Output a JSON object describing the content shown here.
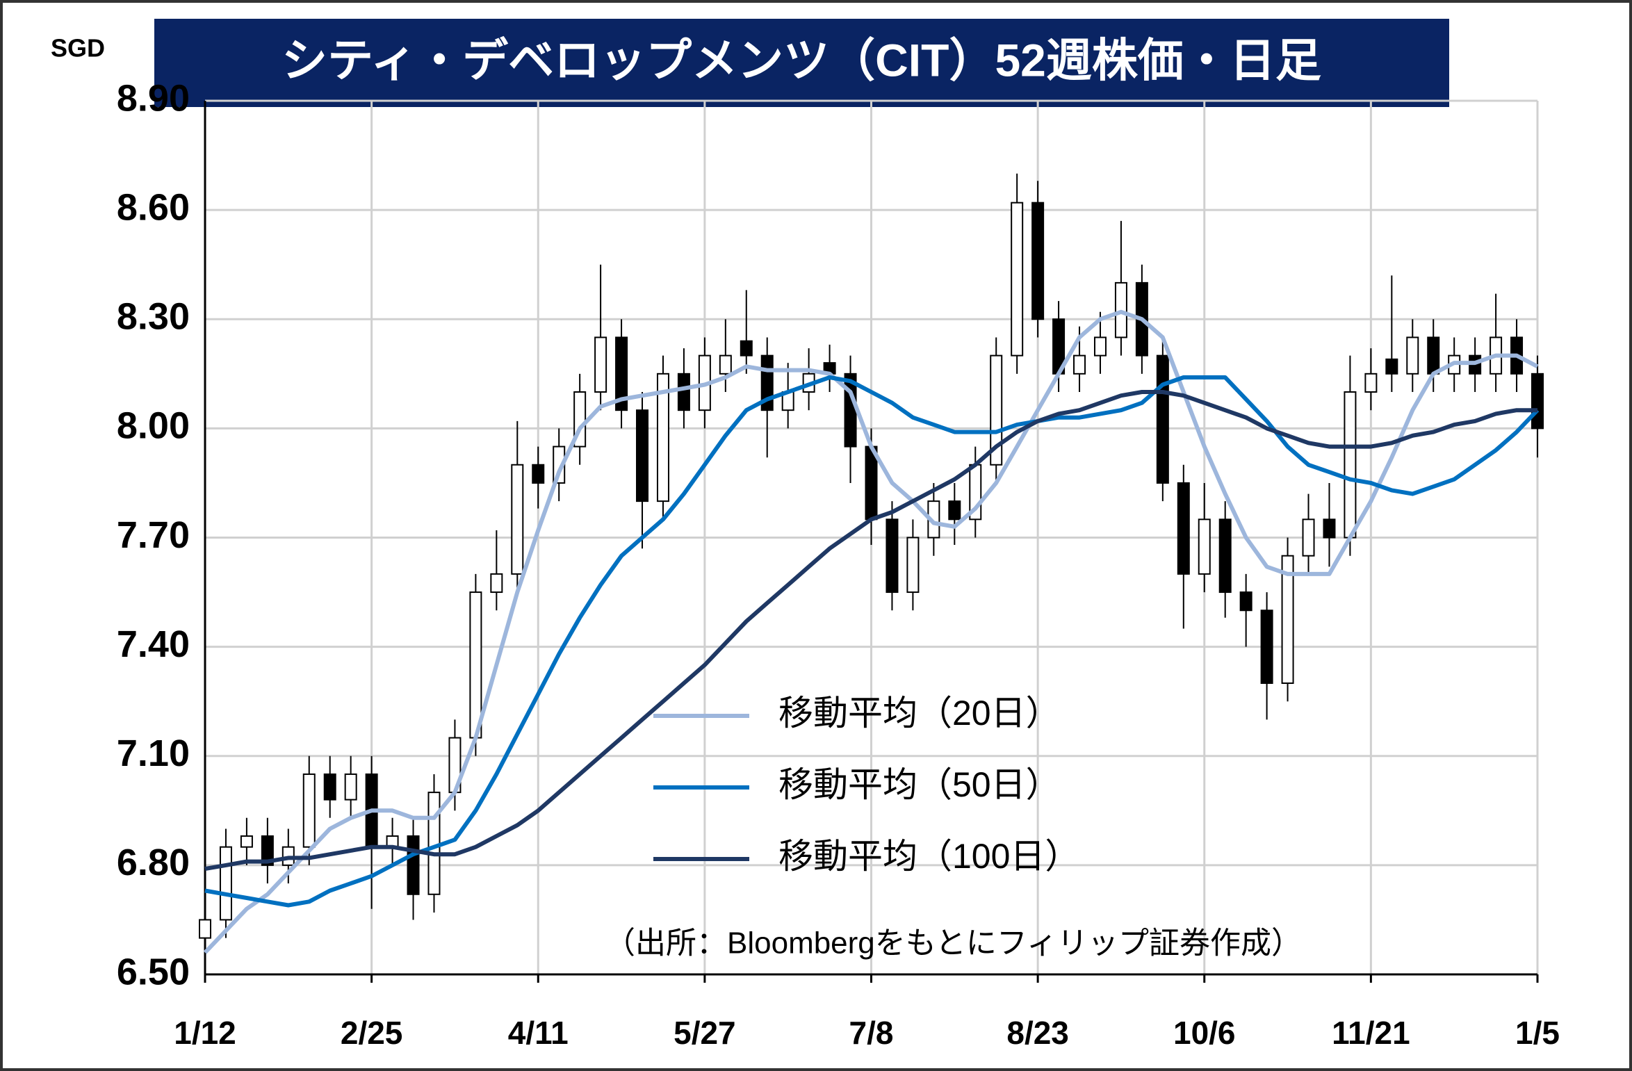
{
  "chart_data": {
    "type": "candlestick",
    "title": "シティ・デベロップメンツ（CIT）52週株価・日足",
    "y_label": "SGD",
    "note": "（出所：Bloombergをもとにフィリップ証券作成）",
    "categories": [
      "1/12",
      null,
      null,
      null,
      null,
      null,
      null,
      null,
      "2/25",
      null,
      null,
      null,
      null,
      null,
      null,
      null,
      "4/11",
      null,
      null,
      null,
      null,
      null,
      null,
      null,
      "5/27",
      null,
      null,
      null,
      null,
      null,
      null,
      null,
      "7/8",
      null,
      null,
      null,
      null,
      null,
      null,
      null,
      "8/23",
      null,
      null,
      null,
      null,
      null,
      null,
      null,
      "10/6",
      null,
      null,
      null,
      null,
      null,
      null,
      null,
      "11/21",
      null,
      null,
      null,
      null,
      null,
      null,
      null,
      "1/5"
    ],
    "open": [
      6.6,
      6.65,
      6.85,
      6.88,
      6.8,
      6.85,
      7.05,
      6.98,
      7.05,
      6.85,
      6.88,
      6.72,
      7.0,
      7.15,
      7.55,
      7.6,
      7.9,
      7.85,
      7.95,
      8.1,
      8.25,
      8.05,
      7.8,
      8.15,
      8.05,
      8.15,
      8.24,
      8.2,
      8.05,
      8.1,
      8.18,
      8.15,
      7.95,
      7.75,
      7.55,
      7.7,
      7.8,
      7.75,
      7.9,
      8.2,
      8.62,
      8.3,
      8.15,
      8.2,
      8.25,
      8.4,
      8.2,
      7.85,
      7.6,
      7.75,
      7.55,
      7.5,
      7.3,
      7.65,
      7.75,
      7.7,
      8.1,
      8.19,
      8.15,
      8.25,
      8.15,
      8.2,
      8.15,
      8.25,
      8.15
    ],
    "high": [
      6.7,
      6.9,
      6.93,
      6.93,
      6.9,
      7.1,
      7.1,
      7.1,
      7.1,
      6.93,
      6.93,
      7.05,
      7.2,
      7.6,
      7.72,
      8.02,
      7.95,
      8.0,
      8.15,
      8.45,
      8.3,
      8.1,
      8.2,
      8.22,
      8.25,
      8.3,
      8.38,
      8.25,
      8.18,
      8.22,
      8.23,
      8.2,
      8.0,
      7.8,
      7.75,
      7.85,
      7.85,
      7.95,
      8.25,
      8.7,
      8.68,
      8.35,
      8.28,
      8.32,
      8.57,
      8.45,
      8.25,
      7.9,
      7.85,
      7.8,
      7.6,
      7.55,
      7.7,
      7.82,
      7.85,
      8.2,
      8.22,
      8.42,
      8.3,
      8.3,
      8.25,
      8.25,
      8.37,
      8.3,
      8.2
    ],
    "low": [
      6.55,
      6.6,
      6.8,
      6.75,
      6.75,
      6.8,
      6.93,
      6.93,
      6.68,
      6.8,
      6.65,
      6.67,
      6.95,
      7.1,
      7.5,
      7.55,
      7.78,
      7.8,
      7.9,
      8.05,
      8.0,
      7.67,
      7.75,
      8.0,
      8.0,
      8.1,
      8.15,
      7.92,
      8.0,
      8.05,
      8.1,
      7.85,
      7.68,
      7.5,
      7.5,
      7.65,
      7.68,
      7.7,
      7.85,
      8.15,
      8.25,
      8.1,
      8.1,
      8.15,
      8.2,
      8.15,
      7.8,
      7.45,
      7.55,
      7.48,
      7.4,
      7.2,
      7.25,
      7.6,
      7.62,
      7.65,
      8.05,
      8.1,
      8.1,
      8.1,
      8.1,
      8.1,
      8.1,
      8.1,
      7.92
    ],
    "close": [
      6.65,
      6.85,
      6.88,
      6.8,
      6.85,
      7.05,
      6.98,
      7.05,
      6.85,
      6.88,
      6.72,
      7.0,
      7.15,
      7.55,
      7.6,
      7.9,
      7.85,
      7.95,
      8.1,
      8.25,
      8.05,
      7.8,
      8.15,
      8.05,
      8.2,
      8.2,
      8.2,
      8.05,
      8.1,
      8.15,
      8.15,
      7.95,
      7.75,
      7.55,
      7.7,
      7.8,
      7.75,
      7.9,
      8.2,
      8.62,
      8.3,
      8.15,
      8.2,
      8.25,
      8.4,
      8.2,
      7.85,
      7.6,
      7.75,
      7.55,
      7.5,
      7.3,
      7.65,
      7.75,
      7.7,
      8.1,
      8.15,
      8.15,
      8.25,
      8.15,
      8.2,
      8.15,
      8.25,
      8.15,
      8.0
    ],
    "series": [
      {
        "name": "移動平均（20日）",
        "color": "#9db6dc",
        "values": [
          6.56,
          6.62,
          6.68,
          6.72,
          6.78,
          6.84,
          6.9,
          6.93,
          6.95,
          6.95,
          6.93,
          6.93,
          7.0,
          7.15,
          7.35,
          7.55,
          7.72,
          7.88,
          8.0,
          8.06,
          8.08,
          8.09,
          8.1,
          8.11,
          8.12,
          8.14,
          8.17,
          8.16,
          8.16,
          8.16,
          8.15,
          8.1,
          7.95,
          7.85,
          7.8,
          7.74,
          7.73,
          7.78,
          7.85,
          7.95,
          8.05,
          8.15,
          8.25,
          8.3,
          8.32,
          8.3,
          8.25,
          8.1,
          7.95,
          7.82,
          7.7,
          7.62,
          7.6,
          7.6,
          7.6,
          7.7,
          7.8,
          7.92,
          8.05,
          8.15,
          8.18,
          8.18,
          8.2,
          8.2,
          8.17
        ]
      },
      {
        "name": "移動平均（50日）",
        "color": "#0070c0",
        "values": [
          6.73,
          6.72,
          6.71,
          6.7,
          6.69,
          6.7,
          6.73,
          6.75,
          6.77,
          6.8,
          6.83,
          6.85,
          6.87,
          6.95,
          7.05,
          7.16,
          7.27,
          7.38,
          7.48,
          7.57,
          7.65,
          7.7,
          7.75,
          7.82,
          7.9,
          7.98,
          8.05,
          8.08,
          8.1,
          8.12,
          8.14,
          8.13,
          8.1,
          8.07,
          8.03,
          8.01,
          7.99,
          7.99,
          7.99,
          8.01,
          8.02,
          8.03,
          8.03,
          8.04,
          8.05,
          8.07,
          8.12,
          8.14,
          8.14,
          8.14,
          8.08,
          8.02,
          7.95,
          7.9,
          7.88,
          7.86,
          7.85,
          7.83,
          7.82,
          7.84,
          7.86,
          7.9,
          7.94,
          7.99,
          8.05
        ]
      },
      {
        "name": "移動平均（100日）",
        "color": "#1f3864",
        "values": [
          6.79,
          6.8,
          6.81,
          6.81,
          6.82,
          6.82,
          6.83,
          6.84,
          6.85,
          6.85,
          6.84,
          6.83,
          6.83,
          6.85,
          6.88,
          6.91,
          6.95,
          7.0,
          7.05,
          7.1,
          7.15,
          7.2,
          7.25,
          7.3,
          7.35,
          7.41,
          7.47,
          7.52,
          7.57,
          7.62,
          7.67,
          7.71,
          7.75,
          7.77,
          7.8,
          7.83,
          7.86,
          7.9,
          7.95,
          7.99,
          8.02,
          8.04,
          8.05,
          8.07,
          8.09,
          8.1,
          8.1,
          8.09,
          8.07,
          8.05,
          8.03,
          8.0,
          7.98,
          7.96,
          7.95,
          7.95,
          7.95,
          7.96,
          7.98,
          7.99,
          8.01,
          8.02,
          8.04,
          8.05,
          8.05
        ]
      }
    ],
    "ylim": [
      6.5,
      8.9
    ],
    "yticks": [
      {
        "value": 6.5,
        "label": "6.50"
      },
      {
        "value": 6.8,
        "label": "6.80"
      },
      {
        "value": 7.1,
        "label": "7.10"
      },
      {
        "value": 7.4,
        "label": "7.40"
      },
      {
        "value": 7.7,
        "label": "7.70"
      },
      {
        "value": 8.0,
        "label": "8.00"
      },
      {
        "value": 8.3,
        "label": "8.30"
      },
      {
        "value": 8.6,
        "label": "8.60"
      },
      {
        "value": 8.9,
        "label": "8.90"
      }
    ],
    "grid": true,
    "up_color": "#ffffff",
    "down_color": "#000000"
  }
}
